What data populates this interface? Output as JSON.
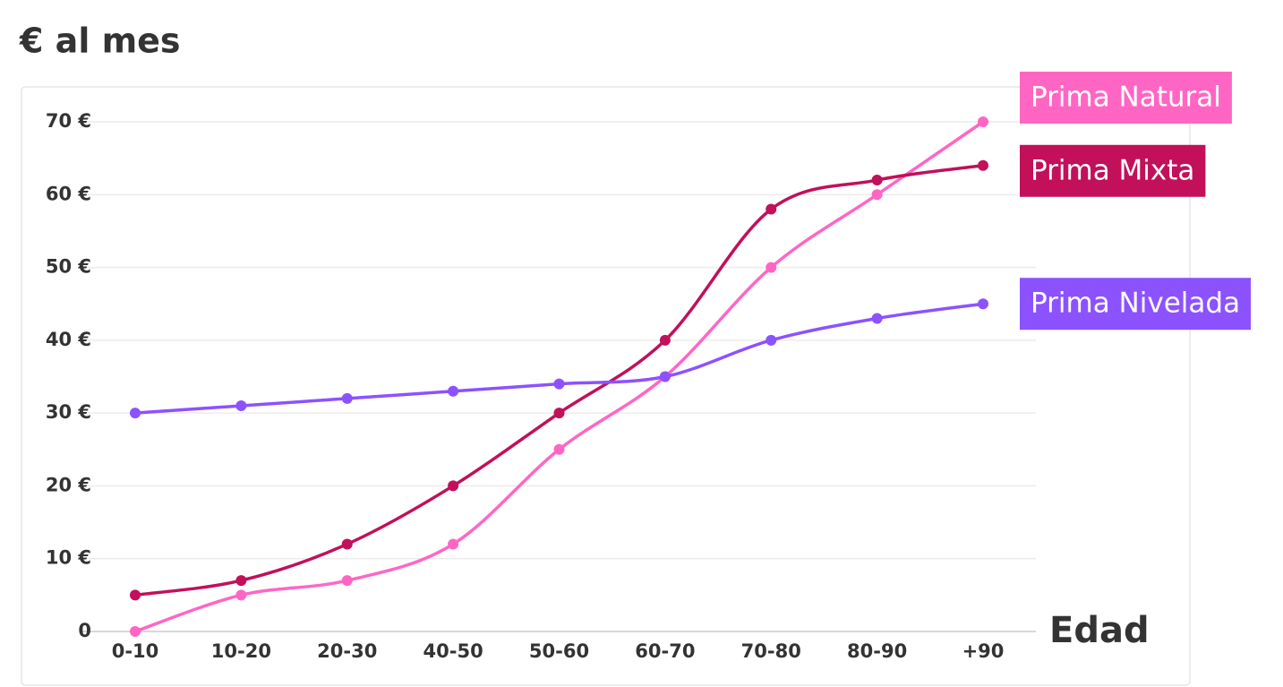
{
  "chart_data": {
    "type": "line",
    "title": "€ al mes",
    "x_label": "Edad",
    "categories": [
      "0-10",
      "10-20",
      "20-30",
      "40-50",
      "50-60",
      "60-70",
      "70-80",
      "80-90",
      "+90"
    ],
    "series": [
      {
        "name": "Prima Natural",
        "color": "#ff66c4",
        "values": [
          0,
          5,
          7,
          12,
          25,
          35,
          50,
          60,
          70
        ]
      },
      {
        "name": "Prima Mixta",
        "color": "#c2105a",
        "values": [
          5,
          7,
          12,
          20,
          30,
          40,
          58,
          62,
          64
        ]
      },
      {
        "name": "Prima Nivelada",
        "color": "#8c52ff",
        "values": [
          30,
          31,
          32,
          33,
          34,
          35,
          40,
          43,
          45
        ]
      }
    ],
    "ylim": [
      0,
      70
    ],
    "yticks": [
      0,
      {
        "value": 10,
        "label": "10 €"
      },
      {
        "value": 20,
        "label": "20 €"
      },
      {
        "value": 30,
        "label": "30 €"
      },
      {
        "value": 40,
        "label": "40 €"
      },
      {
        "value": 50,
        "label": "50 €"
      },
      {
        "value": 60,
        "label": "60 €"
      },
      {
        "value": 70,
        "label": "70 €"
      }
    ],
    "grid": true
  }
}
